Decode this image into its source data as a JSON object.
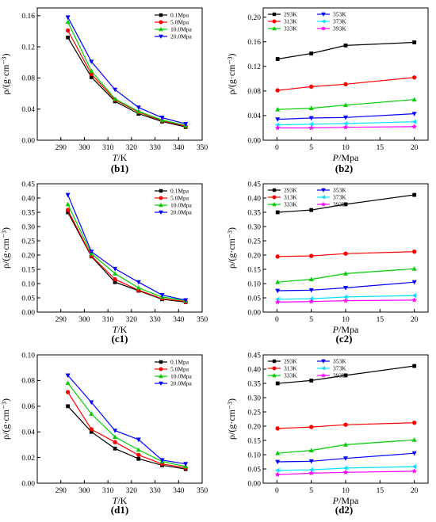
{
  "markers": {
    "square": "square-marker",
    "circle": "circle-marker",
    "up": "up-triangle-marker",
    "down": "down-triangle-marker",
    "left": "left-triangle-marker",
    "star": "star-marker"
  },
  "chart_data": [
    {
      "panel": "(b1)",
      "type": "line",
      "xlabel_var": "T",
      "xlabel_unit": "/K",
      "ylabel": "ρ/(g·cm⁻³)",
      "xlim": [
        280,
        350
      ],
      "ylim": [
        0,
        0.17
      ],
      "xticks": [
        290,
        300,
        310,
        320,
        330,
        340,
        350
      ],
      "yticks": [
        0.0,
        0.04,
        0.08,
        0.12,
        0.16
      ],
      "ydigits": 2,
      "legend": "top-right",
      "legend_cols": 1,
      "x": [
        293,
        303,
        313,
        323,
        333,
        343
      ],
      "series": [
        {
          "name": "0.1Mpa",
          "color": "#000000",
          "marker": "square",
          "values": [
            0.132,
            0.081,
            0.05,
            0.034,
            0.024,
            0.017
          ]
        },
        {
          "name": "5.0Mpa",
          "color": "#ff0000",
          "marker": "circle",
          "values": [
            0.141,
            0.085,
            0.052,
            0.036,
            0.025,
            0.018
          ]
        },
        {
          "name": "10.0Mpa",
          "color": "#00cc00",
          "marker": "up",
          "values": [
            0.152,
            0.089,
            0.053,
            0.037,
            0.026,
            0.019
          ]
        },
        {
          "name": "20.0Mpa",
          "color": "#0000ff",
          "marker": "down",
          "values": [
            0.158,
            0.101,
            0.065,
            0.042,
            0.029,
            0.021
          ]
        }
      ]
    },
    {
      "panel": "(b2)",
      "type": "line",
      "xlabel_var": "P",
      "xlabel_unit": "/Mpa",
      "ylabel": "ρ/(g·cm⁻³)",
      "xlim": [
        -2,
        22
      ],
      "ylim": [
        0,
        0.215
      ],
      "xticks": [
        0,
        5,
        10,
        15,
        20
      ],
      "yticks": [
        0.0,
        0.04,
        0.08,
        0.12,
        0.16,
        0.2
      ],
      "ydigits": 2,
      "legend": "top",
      "legend_cols": 2,
      "x": [
        0.1,
        5,
        10,
        20
      ],
      "series": [
        {
          "name": "293K",
          "color": "#000000",
          "marker": "square",
          "values": [
            0.132,
            0.141,
            0.154,
            0.159
          ]
        },
        {
          "name": "313K",
          "color": "#ff0000",
          "marker": "circle",
          "values": [
            0.081,
            0.087,
            0.091,
            0.102
          ]
        },
        {
          "name": "333K",
          "color": "#00cc00",
          "marker": "up",
          "values": [
            0.05,
            0.052,
            0.057,
            0.066
          ]
        },
        {
          "name": "353K",
          "color": "#0000ff",
          "marker": "down",
          "values": [
            0.034,
            0.036,
            0.037,
            0.043
          ]
        },
        {
          "name": "373K",
          "color": "#00e5ff",
          "marker": "left",
          "values": [
            0.025,
            0.026,
            0.027,
            0.03
          ]
        },
        {
          "name": "393K",
          "color": "#ff00ff",
          "marker": "star",
          "values": [
            0.02,
            0.02,
            0.021,
            0.022
          ]
        }
      ]
    },
    {
      "panel": "(c1)",
      "type": "line",
      "xlabel_var": "T",
      "xlabel_unit": "/K",
      "ylabel": "ρ/(g·cm⁻³)",
      "xlim": [
        280,
        350
      ],
      "ylim": [
        0,
        0.45
      ],
      "xticks": [
        290,
        300,
        310,
        320,
        330,
        340,
        350
      ],
      "yticks": [
        0.0,
        0.05,
        0.1,
        0.15,
        0.2,
        0.25,
        0.3,
        0.35,
        0.4,
        0.45
      ],
      "ydigits": 2,
      "legend": "top-right",
      "legend_cols": 1,
      "x": [
        293,
        303,
        313,
        323,
        333,
        343
      ],
      "series": [
        {
          "name": "0.1Mpa",
          "color": "#000000",
          "marker": "square",
          "values": [
            0.35,
            0.195,
            0.105,
            0.075,
            0.045,
            0.035
          ]
        },
        {
          "name": "5.0Mpa",
          "color": "#ff0000",
          "marker": "circle",
          "values": [
            0.358,
            0.197,
            0.115,
            0.077,
            0.047,
            0.037
          ]
        },
        {
          "name": "10.0Mpa",
          "color": "#00cc00",
          "marker": "up",
          "values": [
            0.378,
            0.205,
            0.135,
            0.085,
            0.053,
            0.04
          ]
        },
        {
          "name": "20.0Mpa",
          "color": "#0000ff",
          "marker": "down",
          "values": [
            0.411,
            0.212,
            0.152,
            0.105,
            0.06,
            0.042
          ]
        }
      ]
    },
    {
      "panel": "(c2)",
      "type": "line",
      "xlabel_var": "P",
      "xlabel_unit": "/Mpa",
      "ylabel": "ρ/(g·cm⁻³)",
      "xlim": [
        -2,
        22
      ],
      "ylim": [
        0,
        0.45
      ],
      "xticks": [
        0,
        5,
        10,
        15,
        20
      ],
      "yticks": [
        0.0,
        0.05,
        0.1,
        0.15,
        0.2,
        0.25,
        0.3,
        0.35,
        0.4,
        0.45
      ],
      "ydigits": 2,
      "legend": "top",
      "legend_cols": 2,
      "x": [
        0.1,
        5,
        10,
        20
      ],
      "series": [
        {
          "name": "293K",
          "color": "#000000",
          "marker": "square",
          "values": [
            0.35,
            0.358,
            0.378,
            0.411
          ]
        },
        {
          "name": "313K",
          "color": "#ff0000",
          "marker": "circle",
          "values": [
            0.195,
            0.197,
            0.205,
            0.212
          ]
        },
        {
          "name": "333K",
          "color": "#00cc00",
          "marker": "up",
          "values": [
            0.105,
            0.115,
            0.135,
            0.152
          ]
        },
        {
          "name": "353K",
          "color": "#0000ff",
          "marker": "down",
          "values": [
            0.075,
            0.077,
            0.085,
            0.105
          ]
        },
        {
          "name": "373K",
          "color": "#00e5ff",
          "marker": "left",
          "values": [
            0.045,
            0.047,
            0.053,
            0.058
          ]
        },
        {
          "name": "393K",
          "color": "#ff00ff",
          "marker": "star",
          "values": [
            0.035,
            0.037,
            0.04,
            0.042
          ]
        }
      ]
    },
    {
      "panel": "(d1)",
      "type": "line",
      "xlabel_var": "T",
      "xlabel_unit": "/K",
      "ylabel": "ρ/(g·cm⁻³)",
      "xlim": [
        280,
        350
      ],
      "ylim": [
        0,
        0.1
      ],
      "xticks": [
        290,
        300,
        310,
        320,
        330,
        340,
        350
      ],
      "yticks": [
        0.0,
        0.02,
        0.04,
        0.06,
        0.08,
        0.1
      ],
      "ydigits": 2,
      "legend": "top-right",
      "legend_cols": 1,
      "x": [
        293,
        303,
        313,
        323,
        333,
        343
      ],
      "series": [
        {
          "name": "0.1Mpa",
          "color": "#000000",
          "marker": "square",
          "values": [
            0.06,
            0.04,
            0.027,
            0.019,
            0.014,
            0.011
          ]
        },
        {
          "name": "5.0Mpa",
          "color": "#ff0000",
          "marker": "circle",
          "values": [
            0.071,
            0.042,
            0.032,
            0.022,
            0.015,
            0.012
          ]
        },
        {
          "name": "10.0Mpa",
          "color": "#00cc00",
          "marker": "up",
          "values": [
            0.078,
            0.054,
            0.036,
            0.026,
            0.017,
            0.013
          ]
        },
        {
          "name": "20.0Mpa",
          "color": "#0000ff",
          "marker": "down",
          "values": [
            0.084,
            0.063,
            0.041,
            0.034,
            0.018,
            0.015
          ]
        }
      ]
    },
    {
      "panel": "(d2)",
      "type": "line",
      "xlabel_var": "P",
      "xlabel_unit": "/Mpa",
      "ylabel": "ρ/(g·cm⁻³)",
      "xlim": [
        -2,
        22
      ],
      "ylim": [
        0,
        0.45
      ],
      "xticks": [
        0,
        5,
        10,
        15,
        20
      ],
      "yticks": [
        0.0,
        0.05,
        0.1,
        0.15,
        0.2,
        0.25,
        0.3,
        0.35,
        0.4,
        0.45
      ],
      "ydigits": 2,
      "legend": "top",
      "legend_cols": 2,
      "x": [
        0.1,
        5,
        10,
        20
      ],
      "series": [
        {
          "name": "293K",
          "color": "#000000",
          "marker": "square",
          "values": [
            0.35,
            0.36,
            0.378,
            0.411
          ]
        },
        {
          "name": "313K",
          "color": "#ff0000",
          "marker": "circle",
          "values": [
            0.192,
            0.197,
            0.205,
            0.212
          ]
        },
        {
          "name": "333K",
          "color": "#00cc00",
          "marker": "up",
          "values": [
            0.105,
            0.115,
            0.135,
            0.152
          ]
        },
        {
          "name": "353K",
          "color": "#0000ff",
          "marker": "down",
          "values": [
            0.075,
            0.077,
            0.087,
            0.105
          ]
        },
        {
          "name": "373K",
          "color": "#00e5ff",
          "marker": "left",
          "values": [
            0.045,
            0.047,
            0.053,
            0.058
          ]
        },
        {
          "name": "393K",
          "color": "#ff00ff",
          "marker": "star",
          "values": [
            0.03,
            0.035,
            0.038,
            0.042
          ]
        }
      ]
    }
  ]
}
